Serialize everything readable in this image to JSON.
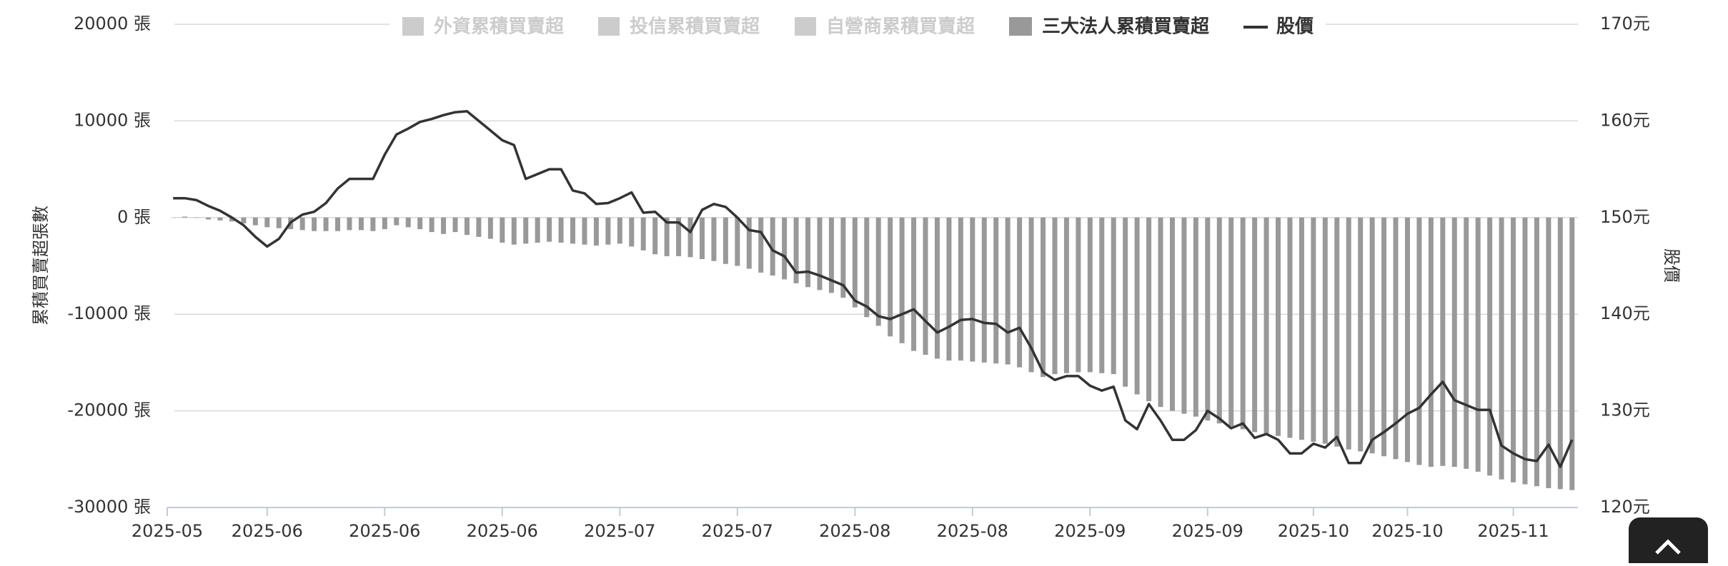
{
  "chart_data": {
    "type": "bar_line",
    "y_axis_title": "累積買賣超張數",
    "y2_axis_title": "股價",
    "inactive_legend": [
      "外資累積買賣超",
      "投信累積買賣超",
      "自營商累積買賣超"
    ],
    "inactive_color": "#cccccc",
    "grid": true,
    "ylim": [
      -30000,
      20000
    ],
    "yticks": [
      {
        "value": -30000,
        "label": "-30000 張"
      },
      {
        "value": -20000,
        "label": "-20000 張"
      },
      {
        "value": -10000,
        "label": "-10000 張"
      },
      {
        "value": 0,
        "label": "0 張"
      },
      {
        "value": 10000,
        "label": "10000 張"
      },
      {
        "value": 20000,
        "label": "20000 張"
      }
    ],
    "y2lim": [
      120,
      170
    ],
    "y2ticks": [
      {
        "value": 120,
        "label": "120元"
      },
      {
        "value": 130,
        "label": "130元"
      },
      {
        "value": 140,
        "label": "140元"
      },
      {
        "value": 150,
        "label": "150元"
      },
      {
        "value": 160,
        "label": "160元"
      },
      {
        "value": 170,
        "label": "170元"
      }
    ],
    "categories": [
      "2025-05",
      null,
      null,
      null,
      null,
      null,
      null,
      null,
      "2025-06",
      null,
      null,
      null,
      null,
      null,
      null,
      null,
      null,
      null,
      "2025-06",
      null,
      null,
      null,
      null,
      null,
      null,
      null,
      null,
      null,
      "2025-06",
      null,
      null,
      null,
      null,
      null,
      null,
      null,
      null,
      null,
      "2025-07",
      null,
      null,
      null,
      null,
      null,
      null,
      null,
      null,
      null,
      "2025-07",
      null,
      null,
      null,
      null,
      null,
      null,
      null,
      null,
      null,
      "2025-08",
      null,
      null,
      null,
      null,
      null,
      null,
      null,
      null,
      null,
      "2025-08",
      null,
      null,
      null,
      null,
      null,
      null,
      null,
      null,
      null,
      "2025-09",
      null,
      null,
      null,
      null,
      null,
      null,
      null,
      null,
      null,
      "2025-09",
      null,
      null,
      null,
      null,
      null,
      null,
      null,
      null,
      "2025-10",
      null,
      null,
      null,
      null,
      null,
      null,
      null,
      "2025-10",
      null,
      null,
      null,
      null,
      null,
      null,
      null,
      null,
      "2025-11",
      null,
      null,
      null,
      null,
      null
    ],
    "series": [
      {
        "name": "三大法人累積買賣超",
        "type": "bar",
        "color": "#999999",
        "values": [
          0,
          100,
          0,
          -200,
          -300,
          -400,
          -600,
          -800,
          -1000,
          -1100,
          -1200,
          -1300,
          -1400,
          -1400,
          -1400,
          -1300,
          -1300,
          -1400,
          -1200,
          -800,
          -1000,
          -1200,
          -1500,
          -1700,
          -1500,
          -1800,
          -2000,
          -2200,
          -2600,
          -2800,
          -2700,
          -2600,
          -2500,
          -2600,
          -2700,
          -2800,
          -2900,
          -2800,
          -2700,
          -3000,
          -3400,
          -3800,
          -4000,
          -4000,
          -4100,
          -4300,
          -4500,
          -4800,
          -5000,
          -5300,
          -5700,
          -6000,
          -6400,
          -6800,
          -7200,
          -7500,
          -7800,
          -8300,
          -9300,
          -10300,
          -11200,
          -12300,
          -13000,
          -13800,
          -14200,
          -14600,
          -14800,
          -14800,
          -14900,
          -15000,
          -15100,
          -15200,
          -15500,
          -16000,
          -16500,
          -16200,
          -16100,
          -16000,
          -16000,
          -16100,
          -16200,
          -17500,
          -18300,
          -19000,
          -19600,
          -20000,
          -20300,
          -20600,
          -21000,
          -21300,
          -21600,
          -21900,
          -22200,
          -22400,
          -22600,
          -22800,
          -23000,
          -23200,
          -23400,
          -23700,
          -24000,
          -24200,
          -24400,
          -24700,
          -25000,
          -25300,
          -25600,
          -25800,
          -25700,
          -25800,
          -26000,
          -26300,
          -26700,
          -27100,
          -27400,
          -27600,
          -27800,
          -28000,
          -28100,
          -28200
        ]
      },
      {
        "name": "股價",
        "type": "line",
        "axis": "y2",
        "color": "#333333",
        "values": [
          152,
          152,
          151.8,
          151.2,
          150.7,
          150,
          149.2,
          148,
          147,
          147.8,
          149.5,
          150.3,
          150.6,
          151.5,
          153,
          154,
          154,
          154,
          156.5,
          158.6,
          159.2,
          159.9,
          160.2,
          160.6,
          160.9,
          161,
          160,
          159,
          158,
          157.5,
          154,
          154.5,
          155,
          155,
          152.8,
          152.5,
          151.4,
          151.5,
          152,
          152.6,
          150.5,
          150.6,
          149.5,
          149.5,
          148.5,
          150.8,
          151.4,
          151.1,
          150,
          148.7,
          148.5,
          146.6,
          146,
          144.3,
          144.4,
          144,
          143.5,
          143,
          141.4,
          140.8,
          139.8,
          139.5,
          140,
          140.5,
          139.3,
          138.1,
          138.7,
          139.4,
          139.5,
          139.1,
          139,
          138.1,
          138.6,
          136.5,
          134,
          133.2,
          133.6,
          133.6,
          132.6,
          132.1,
          132.5,
          129,
          128.1,
          130.7,
          129,
          127,
          127,
          128,
          130,
          129.2,
          128.2,
          128.7,
          127.2,
          127.6,
          127,
          125.6,
          125.6,
          126.6,
          126.2,
          127.3,
          124.6,
          124.6,
          127,
          127.8,
          128.7,
          129.7,
          130.3,
          131.7,
          133,
          131.1,
          130.6,
          130.1,
          130.1,
          126.4,
          125.6,
          125,
          124.8,
          126.5,
          124.2,
          127
        ]
      }
    ]
  }
}
